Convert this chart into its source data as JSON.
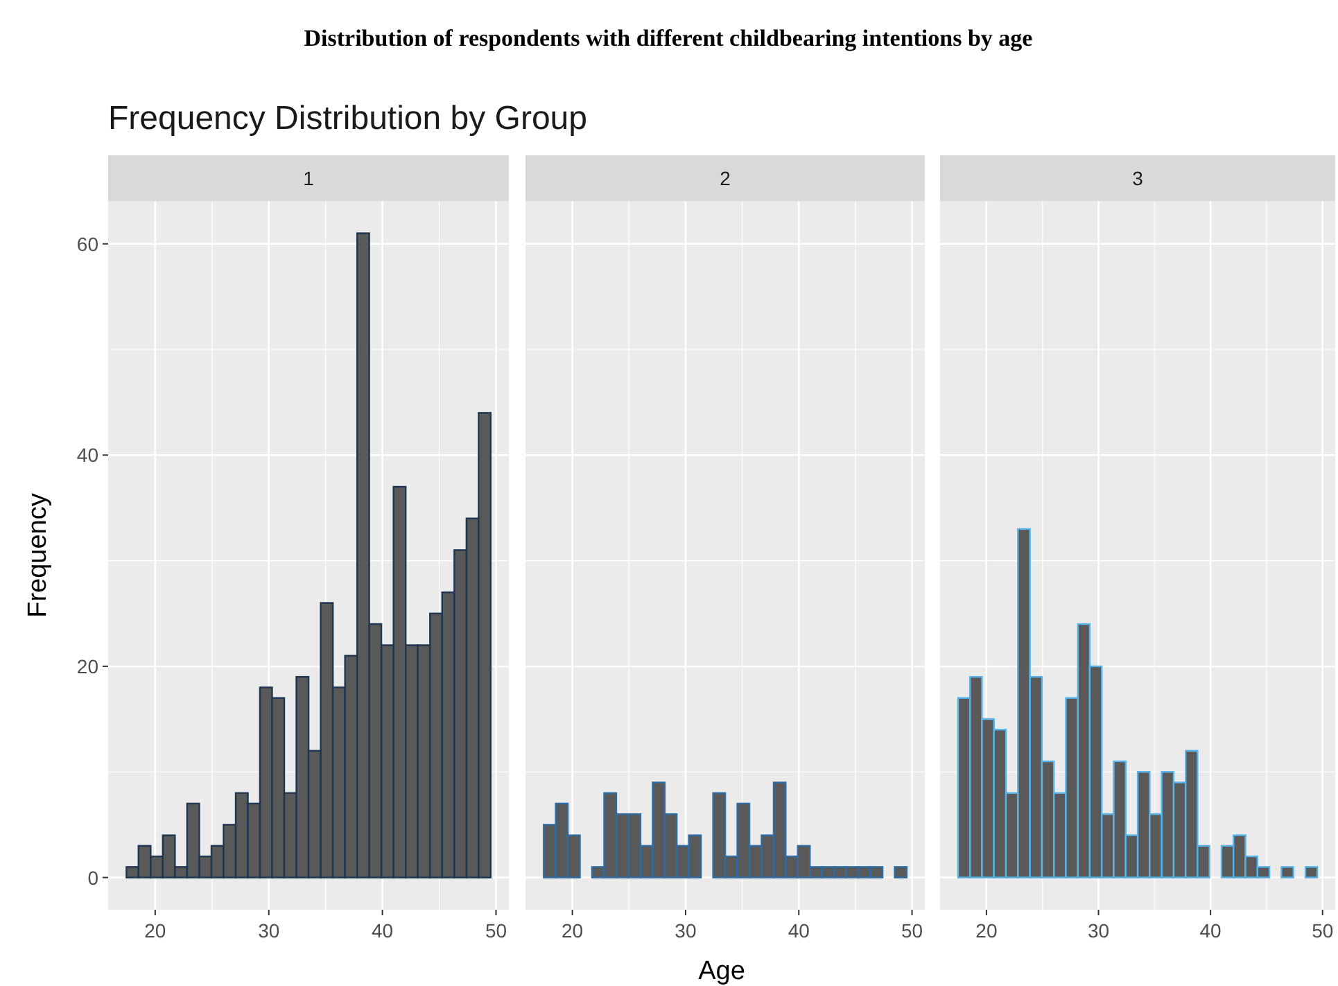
{
  "chart_data": [
    {
      "type": "histogram",
      "title": "Distribution of respondents with different childbearing intentions by age",
      "subtitle": "Frequency Distribution by Group",
      "annotations": [
        "1"
      ],
      "ylabel": "Frequency",
      "bins": [
        17.47,
        18.53,
        19.6,
        20.67,
        21.74,
        22.81,
        23.88,
        24.95,
        26.02,
        27.09,
        28.16,
        29.22,
        30.29,
        31.36,
        32.43,
        33.5,
        34.57,
        35.64,
        36.71,
        37.78,
        38.84,
        39.91,
        40.98,
        42.05,
        43.12,
        44.19,
        45.26,
        46.33,
        47.4,
        48.47,
        49.53
      ],
      "values": [
        1,
        3,
        2,
        4,
        1,
        7,
        2,
        3,
        5,
        8,
        7,
        18,
        17,
        8,
        19,
        12,
        26,
        18,
        21,
        61,
        24,
        22,
        37,
        22,
        22,
        25,
        27,
        31,
        34,
        44
      ],
      "color": "#595959",
      "xlim": [
        15.86,
        51.13
      ],
      "xticks": [
        20,
        30,
        40,
        50
      ],
      "ylim": [
        -3.05,
        64.05
      ],
      "yticks": [
        0,
        20,
        40,
        60
      ],
      "grid": true
    },
    {
      "type": "histogram",
      "title": "2",
      "xlabel": "Age",
      "bins": [
        17.47,
        18.53,
        19.6,
        20.67,
        21.74,
        22.81,
        23.88,
        24.95,
        26.02,
        27.09,
        28.16,
        29.22,
        30.29,
        31.36,
        32.43,
        33.5,
        34.57,
        35.64,
        36.71,
        37.78,
        38.84,
        39.91,
        40.98,
        42.05,
        43.12,
        44.19,
        45.26,
        46.33,
        47.4,
        48.47,
        49.53
      ],
      "values": [
        5,
        7,
        4,
        0,
        1,
        8,
        6,
        6,
        3,
        9,
        6,
        3,
        4,
        0,
        8,
        2,
        7,
        3,
        4,
        9,
        2,
        3,
        1,
        1,
        1,
        1,
        1,
        1,
        0,
        1
      ],
      "color": "#595959",
      "xlim": [
        15.86,
        51.13
      ],
      "xticks": [
        20,
        30,
        40,
        50
      ],
      "ylim": [
        -3.05,
        64.05
      ],
      "yticks": [
        0,
        20,
        40,
        60
      ],
      "grid": true,
      "tick_labels": "x"
    },
    {
      "type": "histogram",
      "title": "3",
      "bins": [
        17.47,
        18.53,
        19.6,
        20.67,
        21.74,
        22.81,
        23.88,
        24.95,
        26.02,
        27.09,
        28.16,
        29.22,
        30.29,
        31.36,
        32.43,
        33.5,
        34.57,
        35.64,
        36.71,
        37.78,
        38.84,
        39.91,
        40.98,
        42.05,
        43.12,
        44.19,
        45.26,
        46.33,
        47.4,
        48.47,
        49.53
      ],
      "values": [
        17,
        19,
        15,
        14,
        8,
        33,
        19,
        11,
        8,
        17,
        24,
        20,
        6,
        11,
        4,
        10,
        6,
        10,
        9,
        12,
        3,
        0,
        3,
        4,
        2,
        1,
        0,
        1,
        0,
        1
      ],
      "color": "#595959",
      "xlim": [
        15.86,
        51.13
      ],
      "xticks": [
        20,
        30,
        40,
        50
      ],
      "ylim": [
        -3.05,
        64.05
      ],
      "yticks": [
        0,
        20,
        40,
        60
      ],
      "grid": true,
      "tick_labels": "x"
    }
  ]
}
